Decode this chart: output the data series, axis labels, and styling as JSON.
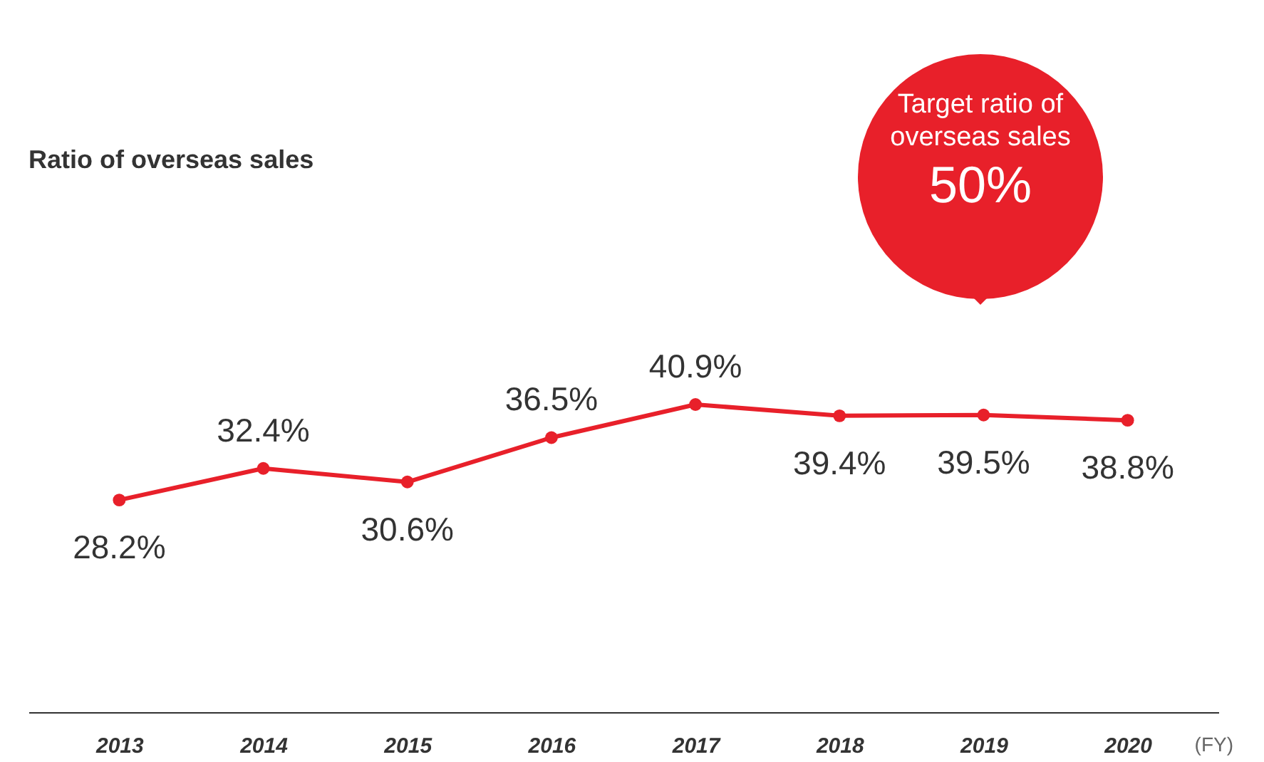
{
  "chart_data": {
    "type": "line",
    "title": "Ratio of overseas sales",
    "xlabel": "(FY)",
    "categories": [
      "2013",
      "2014",
      "2015",
      "2016",
      "2017",
      "2018",
      "2019",
      "2020"
    ],
    "values": [
      28.2,
      32.4,
      30.6,
      36.5,
      40.9,
      39.4,
      39.5,
      38.8
    ],
    "value_labels": [
      "28.2%",
      "32.4%",
      "30.6%",
      "36.5%",
      "40.9%",
      "39.4%",
      "39.5%",
      "38.8%"
    ],
    "color": "#e8202a",
    "marker": "circle",
    "annotations": [
      "Target ratio of overseas sales",
      "50%"
    ]
  }
}
